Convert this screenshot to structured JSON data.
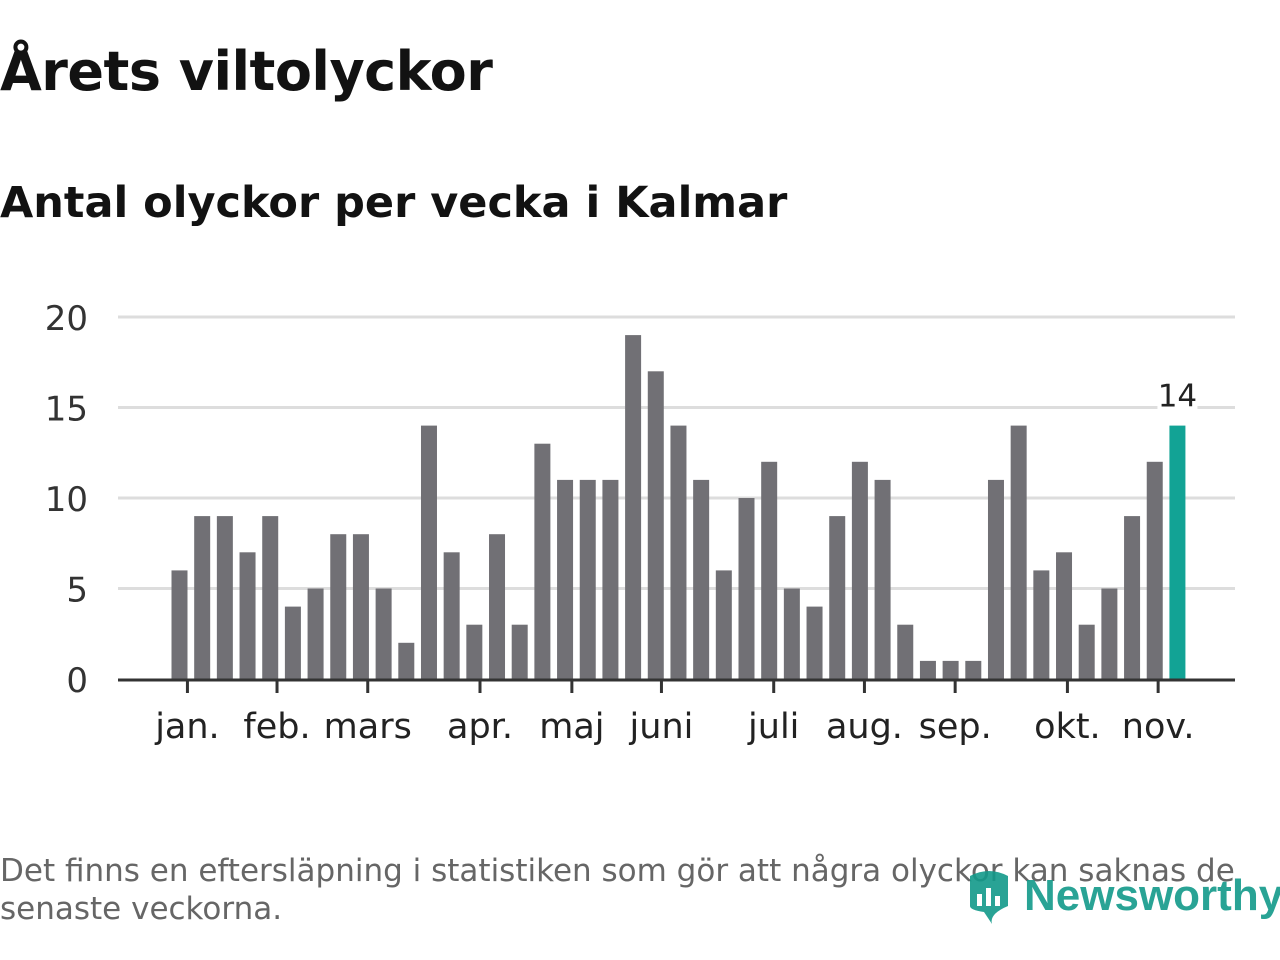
{
  "title": "Årets viltolyckor",
  "subtitle": "Antal olyckor per vecka i Kalmar",
  "footnote": "Det finns en eftersläpning i statistiken som gör att några olyckor kan saknas de senaste veckorna.",
  "logo": {
    "text": "Newsworthy",
    "icon": "bar-chart-bubble-icon"
  },
  "colors": {
    "bar": "#717075",
    "highlight": "#12a395",
    "grid": "#dddddd",
    "axis": "#333333"
  },
  "chart_data": {
    "type": "bar",
    "title": "Antal olyckor per vecka i Kalmar",
    "xlabel": "",
    "ylabel": "",
    "ylim": [
      0,
      20
    ],
    "yticks": [
      0,
      5,
      10,
      15,
      20
    ],
    "grid": true,
    "values": [
      6,
      9,
      9,
      7,
      9,
      4,
      5,
      8,
      8,
      5,
      2,
      14,
      7,
      3,
      8,
      3,
      13,
      11,
      11,
      11,
      19,
      17,
      14,
      11,
      6,
      10,
      12,
      5,
      4,
      9,
      12,
      11,
      3,
      1,
      1,
      1,
      11,
      14,
      6,
      7,
      3,
      5,
      9,
      12,
      14
    ],
    "month_labels": [
      {
        "label": "jan.",
        "week": 0.35
      },
      {
        "label": "feb.",
        "week": 4.3
      },
      {
        "label": "mars",
        "week": 8.3
      },
      {
        "label": "apr.",
        "week": 13.25
      },
      {
        "label": "maj",
        "week": 17.3
      },
      {
        "label": "juni",
        "week": 21.25
      },
      {
        "label": "juli",
        "week": 26.2
      },
      {
        "label": "aug.",
        "week": 30.2
      },
      {
        "label": "sep.",
        "week": 34.2
      },
      {
        "label": "okt.",
        "week": 39.15
      },
      {
        "label": "nov.",
        "week": 43.15
      }
    ],
    "highlight_index": 44,
    "highlight_label": "14"
  }
}
